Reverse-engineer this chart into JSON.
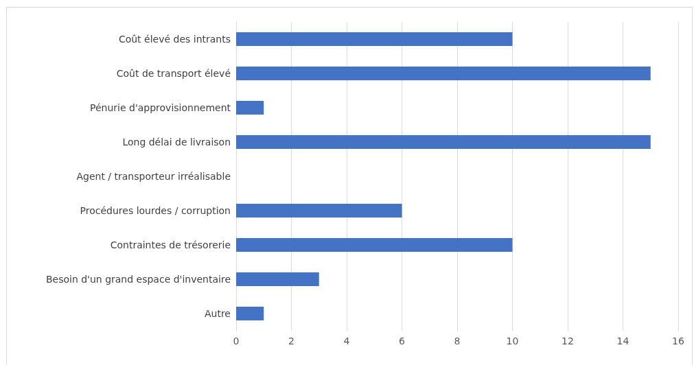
{
  "chart_data": {
    "type": "bar",
    "orientation": "horizontal",
    "categories": [
      "Coût élevé des intrants",
      "Coût de transport élevé",
      "Pénurie d'approvisionnement",
      "Long délai de livraison",
      "Agent / transporteur irréalisable",
      "Procédures lourdes / corruption",
      "Contraintes de trésorerie",
      "Besoin d'un grand espace d'inventaire",
      "Autre"
    ],
    "values": [
      10,
      15,
      1,
      15,
      0,
      6,
      10,
      3,
      1
    ],
    "color": "#4472c4",
    "xlim": [
      0,
      16
    ],
    "xticks": [
      0,
      2,
      4,
      6,
      8,
      10,
      12,
      14,
      16
    ],
    "grid": "x"
  }
}
